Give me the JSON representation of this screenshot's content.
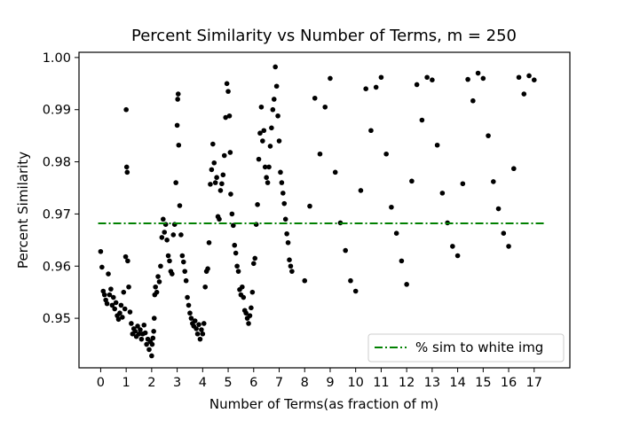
{
  "chart_data": {
    "type": "scatter",
    "title": "Percent Similarity vs Number of Terms, m = 250",
    "xlabel": "Number of Terms(as fraction of m)",
    "ylabel": "Percent Similarity",
    "xlim": [
      -0.85,
      18.4
    ],
    "ylim": [
      0.9405,
      1.001
    ],
    "xticks": [
      0,
      1,
      2,
      3,
      4,
      5,
      6,
      7,
      8,
      9,
      10,
      11,
      12,
      13,
      14,
      15,
      16,
      17
    ],
    "yticks": [
      0.95,
      0.96,
      0.97,
      0.98,
      0.99,
      1.0
    ],
    "ytick_labels": [
      "0.95",
      "0.96",
      "0.97",
      "0.98",
      "0.99",
      "1.00"
    ],
    "grid": false,
    "legend_position": "bottom-right",
    "reference_line": {
      "name": "% sim to white img",
      "y": 0.9682,
      "x_range": [
        -0.1,
        17.4
      ],
      "color": "#008000",
      "style": "dash-dot"
    },
    "points_color": "#000000",
    "points": [
      [
        0.0,
        0.9628
      ],
      [
        0.05,
        0.9598
      ],
      [
        0.1,
        0.9552
      ],
      [
        0.15,
        0.9545
      ],
      [
        0.2,
        0.9535
      ],
      [
        0.25,
        0.9528
      ],
      [
        0.3,
        0.9585
      ],
      [
        0.35,
        0.9545
      ],
      [
        0.4,
        0.9556
      ],
      [
        0.45,
        0.9525
      ],
      [
        0.5,
        0.954
      ],
      [
        0.55,
        0.9518
      ],
      [
        0.6,
        0.953
      ],
      [
        0.65,
        0.9505
      ],
      [
        0.7,
        0.9498
      ],
      [
        0.75,
        0.951
      ],
      [
        0.8,
        0.9525
      ],
      [
        0.85,
        0.9502
      ],
      [
        0.9,
        0.955
      ],
      [
        0.95,
        0.9518
      ],
      [
        0.98,
        0.9618
      ],
      [
        1.0,
        0.99
      ],
      [
        1.02,
        0.979
      ],
      [
        1.04,
        0.978
      ],
      [
        1.06,
        0.961
      ],
      [
        1.1,
        0.956
      ],
      [
        1.15,
        0.9512
      ],
      [
        1.2,
        0.949
      ],
      [
        1.25,
        0.947
      ],
      [
        1.3,
        0.948
      ],
      [
        1.35,
        0.9475
      ],
      [
        1.4,
        0.9465
      ],
      [
        1.45,
        0.9485
      ],
      [
        1.5,
        0.947
      ],
      [
        1.55,
        0.9478
      ],
      [
        1.6,
        0.946
      ],
      [
        1.65,
        0.947
      ],
      [
        1.7,
        0.9487
      ],
      [
        1.75,
        0.9472
      ],
      [
        1.8,
        0.945
      ],
      [
        1.85,
        0.946
      ],
      [
        1.9,
        0.944
      ],
      [
        1.95,
        0.9455
      ],
      [
        2.0,
        0.9428
      ],
      [
        2.02,
        0.945
      ],
      [
        2.05,
        0.9462
      ],
      [
        2.08,
        0.9475
      ],
      [
        2.1,
        0.95
      ],
      [
        2.12,
        0.9545
      ],
      [
        2.15,
        0.956
      ],
      [
        2.2,
        0.955
      ],
      [
        2.25,
        0.958
      ],
      [
        2.3,
        0.957
      ],
      [
        2.35,
        0.96
      ],
      [
        2.4,
        0.9655
      ],
      [
        2.45,
        0.969
      ],
      [
        2.5,
        0.9665
      ],
      [
        2.55,
        0.968
      ],
      [
        2.6,
        0.965
      ],
      [
        2.65,
        0.962
      ],
      [
        2.7,
        0.961
      ],
      [
        2.75,
        0.959
      ],
      [
        2.8,
        0.9585
      ],
      [
        2.85,
        0.966
      ],
      [
        2.9,
        0.968
      ],
      [
        2.95,
        0.976
      ],
      [
        3.0,
        0.987
      ],
      [
        3.02,
        0.992
      ],
      [
        3.04,
        0.993
      ],
      [
        3.06,
        0.9832
      ],
      [
        3.1,
        0.9716
      ],
      [
        3.15,
        0.966
      ],
      [
        3.2,
        0.962
      ],
      [
        3.25,
        0.9608
      ],
      [
        3.3,
        0.959
      ],
      [
        3.35,
        0.9572
      ],
      [
        3.4,
        0.954
      ],
      [
        3.45,
        0.9525
      ],
      [
        3.5,
        0.951
      ],
      [
        3.55,
        0.95
      ],
      [
        3.6,
        0.949
      ],
      [
        3.65,
        0.9485
      ],
      [
        3.7,
        0.9495
      ],
      [
        3.75,
        0.948
      ],
      [
        3.8,
        0.947
      ],
      [
        3.85,
        0.9488
      ],
      [
        3.9,
        0.946
      ],
      [
        3.95,
        0.9478
      ],
      [
        4.0,
        0.947
      ],
      [
        4.05,
        0.949
      ],
      [
        4.1,
        0.956
      ],
      [
        4.15,
        0.959
      ],
      [
        4.2,
        0.9595
      ],
      [
        4.25,
        0.9645
      ],
      [
        4.3,
        0.9757
      ],
      [
        4.35,
        0.9785
      ],
      [
        4.4,
        0.9834
      ],
      [
        4.45,
        0.9798
      ],
      [
        4.5,
        0.976
      ],
      [
        4.55,
        0.977
      ],
      [
        4.6,
        0.9695
      ],
      [
        4.65,
        0.969
      ],
      [
        4.7,
        0.9745
      ],
      [
        4.75,
        0.9758
      ],
      [
        4.8,
        0.9775
      ],
      [
        4.85,
        0.9812
      ],
      [
        4.9,
        0.9885
      ],
      [
        4.95,
        0.995
      ],
      [
        5.0,
        0.9935
      ],
      [
        5.05,
        0.9888
      ],
      [
        5.08,
        0.9818
      ],
      [
        5.1,
        0.9738
      ],
      [
        5.15,
        0.97
      ],
      [
        5.2,
        0.9678
      ],
      [
        5.25,
        0.964
      ],
      [
        5.3,
        0.9625
      ],
      [
        5.35,
        0.96
      ],
      [
        5.4,
        0.959
      ],
      [
        5.45,
        0.9555
      ],
      [
        5.5,
        0.9545
      ],
      [
        5.55,
        0.956
      ],
      [
        5.6,
        0.954
      ],
      [
        5.65,
        0.9515
      ],
      [
        5.7,
        0.951
      ],
      [
        5.75,
        0.95
      ],
      [
        5.8,
        0.949
      ],
      [
        5.85,
        0.9505
      ],
      [
        5.9,
        0.952
      ],
      [
        5.95,
        0.955
      ],
      [
        6.0,
        0.9605
      ],
      [
        6.05,
        0.9615
      ],
      [
        6.1,
        0.968
      ],
      [
        6.15,
        0.9718
      ],
      [
        6.2,
        0.9805
      ],
      [
        6.25,
        0.9855
      ],
      [
        6.3,
        0.9905
      ],
      [
        6.35,
        0.984
      ],
      [
        6.4,
        0.986
      ],
      [
        6.45,
        0.979
      ],
      [
        6.5,
        0.977
      ],
      [
        6.55,
        0.976
      ],
      [
        6.6,
        0.979
      ],
      [
        6.65,
        0.983
      ],
      [
        6.7,
        0.9865
      ],
      [
        6.75,
        0.99
      ],
      [
        6.8,
        0.992
      ],
      [
        6.85,
        0.9982
      ],
      [
        6.9,
        0.9945
      ],
      [
        6.95,
        0.9888
      ],
      [
        7.0,
        0.984
      ],
      [
        7.05,
        0.978
      ],
      [
        7.1,
        0.976
      ],
      [
        7.15,
        0.974
      ],
      [
        7.2,
        0.972
      ],
      [
        7.25,
        0.969
      ],
      [
        7.3,
        0.9662
      ],
      [
        7.35,
        0.9645
      ],
      [
        7.4,
        0.9612
      ],
      [
        7.45,
        0.96
      ],
      [
        7.5,
        0.959
      ],
      [
        8.0,
        0.9572
      ],
      [
        8.2,
        0.9715
      ],
      [
        8.4,
        0.9922
      ],
      [
        8.6,
        0.9815
      ],
      [
        8.8,
        0.9905
      ],
      [
        9.0,
        0.996
      ],
      [
        9.2,
        0.978
      ],
      [
        9.4,
        0.9683
      ],
      [
        9.6,
        0.963
      ],
      [
        9.8,
        0.9572
      ],
      [
        10.0,
        0.9552
      ],
      [
        10.2,
        0.9745
      ],
      [
        10.4,
        0.994
      ],
      [
        10.6,
        0.986
      ],
      [
        10.8,
        0.9943
      ],
      [
        11.0,
        0.9962
      ],
      [
        11.2,
        0.9815
      ],
      [
        11.4,
        0.9713
      ],
      [
        11.6,
        0.9663
      ],
      [
        11.8,
        0.961
      ],
      [
        12.0,
        0.9565
      ],
      [
        12.2,
        0.9763
      ],
      [
        12.4,
        0.9948
      ],
      [
        12.6,
        0.988
      ],
      [
        12.8,
        0.9962
      ],
      [
        13.0,
        0.9957
      ],
      [
        13.2,
        0.9832
      ],
      [
        13.4,
        0.974
      ],
      [
        13.6,
        0.9683
      ],
      [
        13.8,
        0.9638
      ],
      [
        14.0,
        0.962
      ],
      [
        14.2,
        0.9758
      ],
      [
        14.4,
        0.9958
      ],
      [
        14.6,
        0.9917
      ],
      [
        14.8,
        0.997
      ],
      [
        15.0,
        0.996
      ],
      [
        15.2,
        0.985
      ],
      [
        15.4,
        0.9762
      ],
      [
        15.6,
        0.971
      ],
      [
        15.8,
        0.9663
      ],
      [
        16.0,
        0.9638
      ],
      [
        16.2,
        0.9787
      ],
      [
        16.4,
        0.9962
      ],
      [
        16.6,
        0.993
      ],
      [
        16.8,
        0.9965
      ],
      [
        17.0,
        0.9957
      ]
    ]
  }
}
